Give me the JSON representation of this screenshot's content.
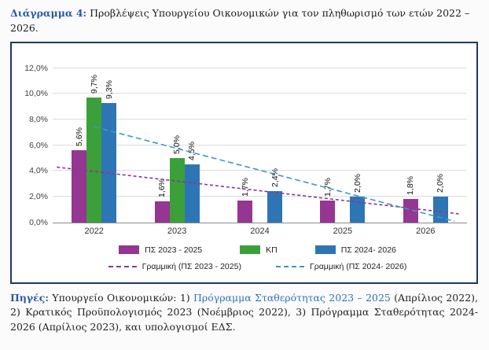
{
  "title": {
    "prefix": "Διάγραμμα 4:",
    "text": " Προβλέψεις Υπουργείου Οικονομικών για τον πληθωρισμό των ετών 2022 – 2026."
  },
  "chart_data": {
    "type": "bar",
    "title": "Προβλέψεις Υπουργείου Οικονομικών για τον πληθωρισμό των ετών 2022 – 2026",
    "categories": [
      "2022",
      "2023",
      "2024",
      "2025",
      "2026"
    ],
    "series": [
      {
        "name": "ΠΣ 2023 - 2025",
        "color": "#943692",
        "values": [
          5.6,
          1.6,
          1.7,
          1.7,
          1.8
        ]
      },
      {
        "name": "ΚΠ",
        "color": "#3ba03a",
        "values": [
          9.7,
          5.0,
          null,
          null,
          null
        ]
      },
      {
        "name": "ΠΣ 2024- 2026",
        "color": "#2e75b6",
        "values": [
          9.3,
          4.5,
          2.4,
          2.0,
          2.0
        ]
      }
    ],
    "trendlines": [
      {
        "name": "Γραμμική (ΠΣ 2023 - 2025)",
        "series_index": 0,
        "color": "#8a3a8a",
        "dash": "4 3",
        "start_index": -0.45,
        "end_index": 4.4
      },
      {
        "name": "Γραμμική (ΠΣ 2024- 2026)",
        "series_index": 2,
        "color": "#3d97c6",
        "dash": "7 4",
        "start_index": 0.0,
        "end_index": 4.35
      }
    ],
    "ylim": [
      0,
      12
    ],
    "ytick_labels": [
      "0,0%",
      "2,0%",
      "4,0%",
      "6,0%",
      "8,0%",
      "10,0%",
      "12,0%"
    ],
    "value_label_format": "comma-decimal-percent",
    "grid": true,
    "legend_position": "bottom"
  },
  "footer": {
    "label": "Πηγές:",
    "part1": " Υπουργείο Οικονομικών: 1) ",
    "link1": "Πρόγραμμα Σταθερότητας 2023 – 2025",
    "part2": " (Απρίλιος 2022), 2) Κρατικός Προϋπολογισμός 2023 (Νοέμβριος 2022), 3) Πρόγραμμα Σταθερότητας 2024-2026 (Απρίλιος 2023), και υπολογισμοί ΕΔΣ."
  }
}
